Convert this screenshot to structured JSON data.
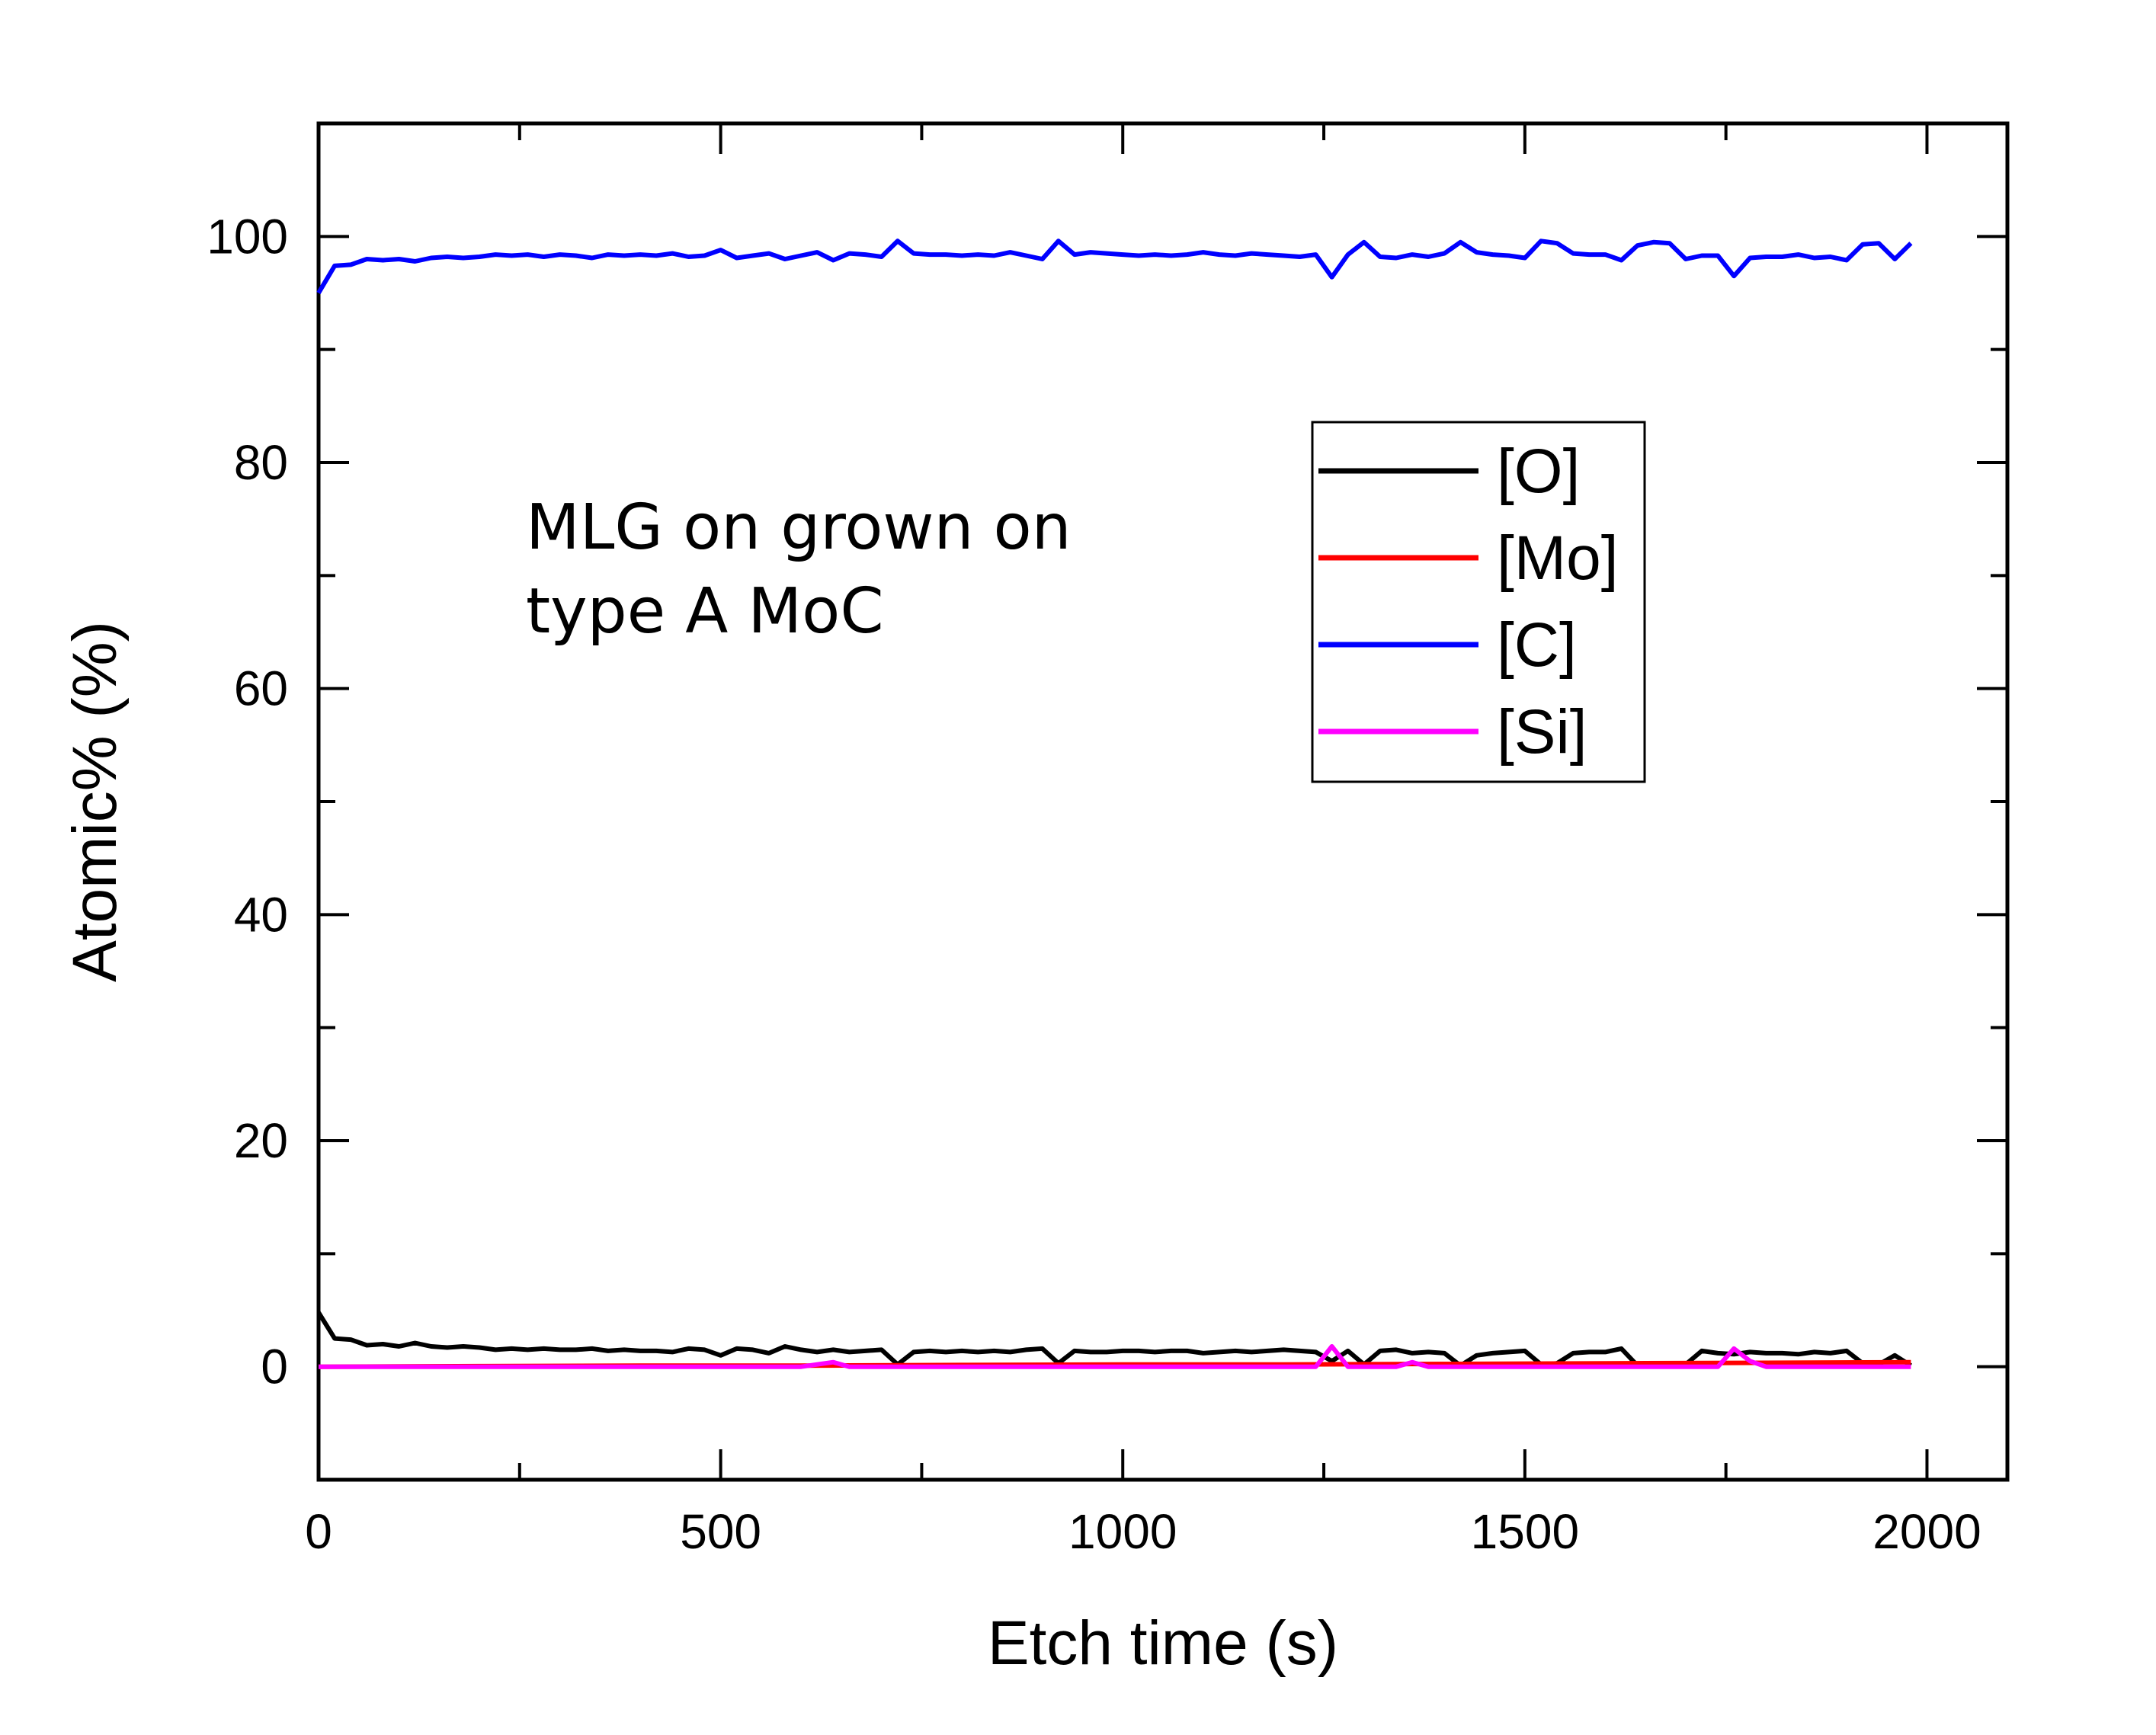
{
  "chart_data": {
    "type": "line",
    "title": "",
    "xlabel": "Etch time (s)",
    "ylabel": "Atomic% (%)",
    "xlim": [
      0,
      2100
    ],
    "ylim": [
      -10,
      110
    ],
    "xticks": [
      0,
      500,
      1000,
      1500,
      2000
    ],
    "yticks": [
      0,
      20,
      40,
      60,
      80,
      100
    ],
    "annotation": [
      "MLG on grown on",
      "type A MoC"
    ],
    "legend_position": "upper-right-center",
    "series": [
      {
        "name": "[O]",
        "color": "#000000",
        "x": [
          0,
          20,
          40,
          60,
          80,
          100,
          120,
          140,
          160,
          180,
          200,
          220,
          240,
          260,
          280,
          300,
          320,
          340,
          360,
          380,
          400,
          420,
          440,
          460,
          480,
          500,
          520,
          540,
          560,
          580,
          600,
          620,
          640,
          660,
          680,
          700,
          720,
          740,
          760,
          780,
          800,
          820,
          840,
          860,
          880,
          900,
          920,
          940,
          960,
          980,
          1000,
          1020,
          1040,
          1060,
          1080,
          1100,
          1120,
          1140,
          1160,
          1180,
          1200,
          1220,
          1240,
          1260,
          1280,
          1300,
          1320,
          1340,
          1360,
          1380,
          1400,
          1420,
          1440,
          1460,
          1480,
          1500,
          1520,
          1540,
          1560,
          1580,
          1600,
          1620,
          1640,
          1660,
          1680,
          1700,
          1720,
          1740,
          1760,
          1780,
          1800,
          1820,
          1840,
          1860,
          1880,
          1900,
          1920,
          1940,
          1960,
          1980
        ],
        "values": [
          4.8,
          2.5,
          2.4,
          1.9,
          2.0,
          1.8,
          2.1,
          1.8,
          1.7,
          1.8,
          1.7,
          1.5,
          1.6,
          1.5,
          1.6,
          1.5,
          1.5,
          1.6,
          1.4,
          1.5,
          1.4,
          1.4,
          1.3,
          1.6,
          1.5,
          1.0,
          1.6,
          1.5,
          1.2,
          1.8,
          1.5,
          1.3,
          1.5,
          1.3,
          1.4,
          1.5,
          0.2,
          1.3,
          1.4,
          1.3,
          1.4,
          1.3,
          1.4,
          1.3,
          1.5,
          1.6,
          0.3,
          1.4,
          1.3,
          1.3,
          1.4,
          1.4,
          1.3,
          1.4,
          1.4,
          1.2,
          1.3,
          1.4,
          1.3,
          1.4,
          1.5,
          1.4,
          1.3,
          0.5,
          1.4,
          0.2,
          1.4,
          1.5,
          1.2,
          1.3,
          1.2,
          0.1,
          1.0,
          1.2,
          1.3,
          1.4,
          0.2,
          0.3,
          1.2,
          1.3,
          1.3,
          1.6,
          0.1,
          0.2,
          0.3,
          0.2,
          1.4,
          1.2,
          1.1,
          1.3,
          1.2,
          1.2,
          1.1,
          1.3,
          1.2,
          1.4,
          0.3,
          0.2,
          1.0,
          0.1
        ]
      },
      {
        "name": "[Mo]",
        "color": "#ff0000",
        "x": [
          0,
          200,
          400,
          600,
          800,
          1000,
          1200,
          1400,
          1600,
          1800,
          1980
        ],
        "values": [
          0.0,
          0.05,
          0.1,
          0.1,
          0.15,
          0.2,
          0.2,
          0.25,
          0.3,
          0.35,
          0.4
        ]
      },
      {
        "name": "[C]",
        "color": "#0000ff",
        "x": [
          0,
          20,
          40,
          60,
          80,
          100,
          120,
          140,
          160,
          180,
          200,
          220,
          240,
          260,
          280,
          300,
          320,
          340,
          360,
          380,
          400,
          420,
          440,
          460,
          480,
          500,
          520,
          540,
          560,
          580,
          600,
          620,
          640,
          660,
          680,
          700,
          720,
          740,
          760,
          780,
          800,
          820,
          840,
          860,
          880,
          900,
          920,
          940,
          960,
          980,
          1000,
          1020,
          1040,
          1060,
          1080,
          1100,
          1120,
          1140,
          1160,
          1180,
          1200,
          1220,
          1240,
          1260,
          1280,
          1300,
          1320,
          1340,
          1360,
          1380,
          1400,
          1420,
          1440,
          1460,
          1480,
          1500,
          1520,
          1540,
          1560,
          1580,
          1600,
          1620,
          1640,
          1660,
          1680,
          1700,
          1720,
          1740,
          1760,
          1780,
          1800,
          1820,
          1840,
          1860,
          1880,
          1900,
          1920,
          1940,
          1960,
          1980
        ],
        "values": [
          95.0,
          97.4,
          97.5,
          98.0,
          97.9,
          98.0,
          97.8,
          98.1,
          98.2,
          98.1,
          98.2,
          98.4,
          98.3,
          98.4,
          98.2,
          98.4,
          98.3,
          98.1,
          98.4,
          98.3,
          98.4,
          98.3,
          98.5,
          98.2,
          98.3,
          98.8,
          98.1,
          98.3,
          98.5,
          98.0,
          98.3,
          98.6,
          97.9,
          98.5,
          98.4,
          98.2,
          99.6,
          98.5,
          98.4,
          98.4,
          98.3,
          98.4,
          98.3,
          98.6,
          98.3,
          98.0,
          99.6,
          98.4,
          98.6,
          98.5,
          98.4,
          98.3,
          98.4,
          98.3,
          98.4,
          98.6,
          98.4,
          98.3,
          98.5,
          98.4,
          98.3,
          98.2,
          98.4,
          96.4,
          98.4,
          99.5,
          98.2,
          98.1,
          98.4,
          98.2,
          98.5,
          99.5,
          98.6,
          98.4,
          98.3,
          98.1,
          99.6,
          99.4,
          98.5,
          98.4,
          98.4,
          97.9,
          99.2,
          99.5,
          99.4,
          98.0,
          98.3,
          98.3,
          96.5,
          98.1,
          98.2,
          98.2,
          98.4,
          98.1,
          98.2,
          97.9,
          99.3,
          99.4,
          98.0,
          99.4
        ]
      },
      {
        "name": "[Si]",
        "color": "#ff00ff",
        "x": [
          0,
          200,
          400,
          600,
          640,
          660,
          700,
          1000,
          1240,
          1260,
          1280,
          1340,
          1360,
          1380,
          1740,
          1760,
          1780,
          1800,
          1980
        ],
        "values": [
          0.0,
          0.0,
          0.0,
          0.0,
          0.4,
          0.0,
          0.0,
          0.0,
          0.0,
          1.8,
          0.0,
          0.0,
          0.4,
          0.0,
          0.0,
          1.6,
          0.5,
          0.0,
          0.0
        ]
      }
    ]
  }
}
